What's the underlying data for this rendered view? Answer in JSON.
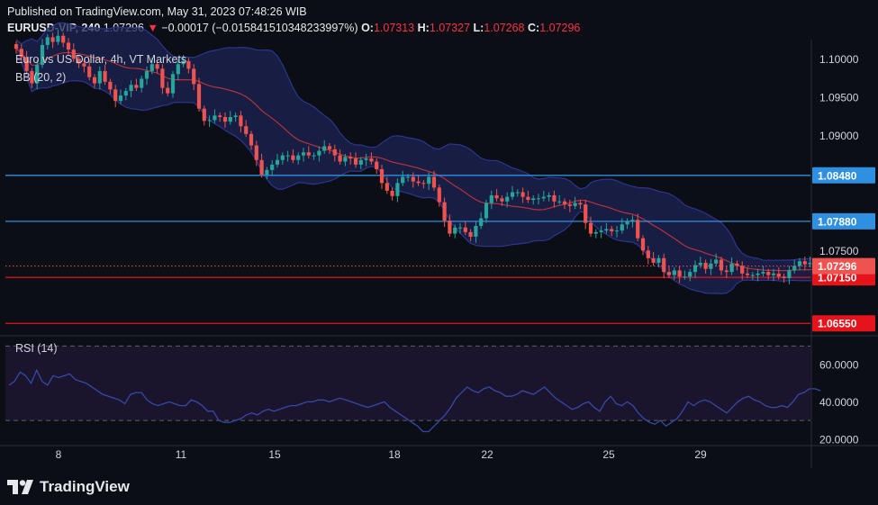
{
  "header": {
    "line1": "Published on TradingView.com, May 31, 2023 07:48:26 WIB",
    "symbol": "EURUSD-VIP, 240",
    "last": "1.07296",
    "arrow": "▼",
    "change": "−0.00017 (−0.015841510348233997%)",
    "o_label": "O:",
    "o": "1.07313",
    "h_label": "H:",
    "h": "1.07327",
    "l_label": "L:",
    "l": "1.07268",
    "c_label": "C:",
    "c": "1.07296"
  },
  "overlay": {
    "title": "Euro vs US Dollar, 4h, VT Markets",
    "bb": "BB (20, 2)",
    "rsi": "RSI (14)"
  },
  "footer": {
    "brand": "TradingView"
  },
  "colors": {
    "background": "#0c0e15",
    "up": "#26a69a",
    "down": "#ef5350",
    "bb_fill": "#1b2353",
    "bb_band": "#2c3590",
    "bb_basis": "#b7323b",
    "resistance_line": "#2f8fe0",
    "support_line": "#e6131b",
    "rsi_line": "#3649a8",
    "rsi_fill": "#1d1530"
  },
  "chart_data": {
    "type": "candlestick",
    "title": "Euro vs US Dollar, 4h, VT Markets",
    "x_tick_labels": [
      "8",
      "11",
      "15",
      "18",
      "22",
      "25",
      "29"
    ],
    "y_tick_labels": [
      "1.10000",
      "1.09500",
      "1.09000",
      "1.07500"
    ],
    "ylim": [
      1.064,
      1.1025
    ],
    "grid": false,
    "horizontal_levels": [
      {
        "value": 1.0848,
        "label": "1.08480",
        "kind": "resistance"
      },
      {
        "value": 1.0788,
        "label": "1.07880",
        "kind": "resistance"
      },
      {
        "value": 1.0715,
        "label": "1.07150",
        "kind": "support"
      },
      {
        "value": 1.0655,
        "label": "1.06550",
        "kind": "support"
      }
    ],
    "current_price": {
      "value": 1.07296,
      "label": "1.07296"
    },
    "close_series": [
      1.1013,
      1.1002,
      1.0984,
      1.0968,
      1.0992,
      1.1018,
      1.1028,
      1.1022,
      1.103,
      1.1021,
      1.1012,
      1.1,
      1.0994,
      1.099,
      1.0976,
      1.0968,
      1.0984,
      1.097,
      1.096,
      1.0945,
      1.0952,
      1.0958,
      1.0966,
      1.0962,
      1.0974,
      1.0984,
      1.0993,
      1.0987,
      1.0962,
      1.0955,
      1.098,
      1.0993,
      1.0997,
      1.0987,
      1.0967,
      1.0935,
      1.0919,
      1.092,
      1.0926,
      1.0924,
      1.0918,
      1.0924,
      1.0926,
      1.0912,
      1.0902,
      1.0887,
      1.0868,
      1.0849,
      1.0855,
      1.0862,
      1.0868,
      1.0874,
      1.0874,
      1.0868,
      1.0874,
      1.0878,
      1.0874,
      1.0874,
      1.088,
      1.0886,
      1.0882,
      1.0874,
      1.0866,
      1.0872,
      1.087,
      1.0862,
      1.0868,
      1.087,
      1.0866,
      1.0856,
      1.0838,
      1.0828,
      1.0821,
      1.0838,
      1.0846,
      1.0846,
      1.084,
      1.0838,
      1.0837,
      1.0846,
      1.0832,
      1.0813,
      1.0789,
      1.0772,
      1.078,
      1.078,
      1.0774,
      1.0768,
      1.0782,
      1.0792,
      1.0812,
      1.0822,
      1.0818,
      1.0814,
      1.082,
      1.0826,
      1.0826,
      1.082,
      1.0816,
      1.0818,
      1.0818,
      1.082,
      1.0822,
      1.0814,
      1.0814,
      1.081,
      1.0808,
      1.0812,
      1.081,
      1.0786,
      1.0772,
      1.0774,
      1.0776,
      1.0778,
      1.0775,
      1.0776,
      1.0784,
      1.0788,
      1.079,
      1.0766,
      1.075,
      1.074,
      1.0734,
      1.074,
      1.0722,
      1.0718,
      1.0724,
      1.0716,
      1.0716,
      1.0722,
      1.0731,
      1.0734,
      1.0726,
      1.0733,
      1.0738,
      1.0724,
      1.0722,
      1.0733,
      1.073,
      1.072,
      1.0718,
      1.0718,
      1.072,
      1.0722,
      1.0718,
      1.072,
      1.0716,
      1.0714,
      1.0724,
      1.073,
      1.0736,
      1.0732,
      1.0734,
      1.073,
      1.073
    ],
    "bollinger": {
      "period": 20,
      "stddev": 2
    },
    "rsi": {
      "period": 14,
      "y_tick_labels": [
        "60.0000",
        "40.0000",
        "20.0000"
      ],
      "ylim": [
        17,
        75
      ],
      "levels": [
        70,
        30
      ],
      "values": [
        49,
        51,
        56,
        54,
        50,
        57,
        51,
        49,
        54,
        53,
        54,
        55,
        52,
        51,
        50,
        48,
        46,
        44,
        43,
        42,
        41,
        39,
        44,
        45,
        45,
        41,
        39,
        38,
        39,
        40,
        39,
        38,
        38,
        41,
        40,
        38,
        35,
        35,
        30,
        29,
        29,
        30,
        31,
        33,
        34,
        33,
        35,
        36,
        35,
        36,
        37,
        38,
        38,
        39,
        40,
        40,
        41,
        41,
        40,
        41,
        42,
        41,
        40,
        39,
        38,
        37,
        38,
        39,
        40,
        37,
        35,
        33,
        31,
        29,
        27,
        24,
        24,
        27,
        30,
        33,
        37,
        42,
        45,
        48,
        46,
        45,
        47,
        48,
        46,
        45,
        43,
        43,
        44,
        46,
        45,
        44,
        46,
        48,
        45,
        42,
        40,
        38,
        36,
        37,
        39,
        40,
        37,
        35,
        40,
        43,
        39,
        38,
        40,
        38,
        34,
        31,
        29,
        28,
        30,
        27,
        29,
        31,
        35,
        40,
        38,
        40,
        41,
        40,
        38,
        36,
        34,
        37,
        40,
        42,
        43,
        41,
        40,
        38,
        37,
        37,
        38,
        37,
        40,
        44,
        45,
        47,
        47,
        46
      ]
    }
  }
}
